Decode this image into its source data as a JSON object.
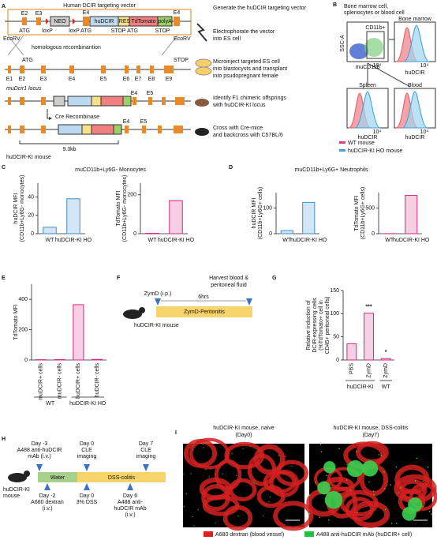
{
  "panel_labels": [
    "A",
    "B",
    "C",
    "D",
    "E",
    "F",
    "G",
    "H",
    "I"
  ],
  "a": {
    "vector_title": "Human DCIR targeting vector",
    "top_exons": [
      "E2",
      "E3",
      "E4",
      "E4"
    ],
    "cassette": [
      "NEO",
      "huDCIR",
      "IRES",
      "TdTomato",
      "polyA"
    ],
    "below_marks": [
      "ATG",
      "loxP",
      "loxP",
      "ATG",
      "STOP",
      "ATG",
      "STOP"
    ],
    "ecorv": [
      "EcoRV",
      "EcoRV"
    ],
    "recombination": "homologous recombinantion",
    "locus_marks": [
      "ATG",
      "STOP"
    ],
    "locus_exons": [
      "E1",
      "E2",
      "E3",
      "E4",
      "E5",
      "E6",
      "E7",
      "E8",
      "E9"
    ],
    "locus_name": "muDcir1 locus",
    "ki_exons": [
      "E4",
      "E5"
    ],
    "cre": "Cre Recombinase",
    "final_exons": [
      "E4",
      "E5"
    ],
    "length": "9.3kb",
    "mouse": "huDCIR-KI mouse",
    "steps": [
      "Generate the huDCIR targeting vector",
      "Electrophorate the vector",
      "into ES cell",
      "Microinject targeted ES cell",
      "into blastocysts and transplant",
      "into psudopregnant female",
      "Identify F1 chimeric offsprings",
      "with huDCIR-KI locus",
      "Cross with Cre-mice",
      "and backcross with C57BL/6"
    ]
  },
  "b": {
    "source": [
      "Bone marrow cell,",
      "splenocytes or blood cell"
    ],
    "gate": "CD11b+",
    "dot_ylabel": "SSC-A",
    "dot_xlabel": "muCD11b",
    "hist_titles": [
      "Bone marrow",
      "Spleen",
      "Blood"
    ],
    "hist_xlabels": [
      "huDCIR",
      "huDCIR",
      "huDCIR"
    ],
    "tick_labels": [
      "10⁴",
      "10⁴",
      "10⁴",
      "10⁴"
    ],
    "legend": [
      "WT mouse",
      "huDCIR-KI HO mouse"
    ]
  },
  "c": {
    "title": "muCD11b+Ly6G- Monocytes"
  },
  "d": {
    "title": "muCD11b+Ly6G+ Neutrophils"
  },
  "f": {
    "injection": "ZymD (i.p.)",
    "duration": "6hrs",
    "harvest": [
      "Harvest blood &",
      "peritoneal fluid"
    ],
    "phase": "ZymD-Peritonitis",
    "mouse": "huDCIR-KI mouse"
  },
  "h": {
    "above": [
      [
        "Day -3",
        "A488 anti-huDCIR",
        "mAb (i.v.)"
      ],
      [
        "Day 0",
        "CLE",
        "imaging"
      ],
      [
        "Day 7",
        "CLE",
        "imaging"
      ]
    ],
    "below": [
      [
        "Day -2",
        "A680 dextran",
        "(i.v.)"
      ],
      [
        "Day 0",
        "3% DSS"
      ],
      [
        "Day 6",
        "A488 anti-",
        "huDCIR mAb",
        "(i.v.)"
      ]
    ],
    "phases": [
      "Water",
      "DSS-colitis"
    ],
    "mouse": [
      "huDCIR-KI",
      "mouse"
    ]
  },
  "i": {
    "titles": [
      [
        "huDCIR-KI mouse, naive",
        "(Day0)"
      ],
      [
        "huDCIR-KI mouse, DSS-colitis",
        "(Day7)"
      ]
    ],
    "scale": [
      "20 μm",
      "20 μm"
    ],
    "legend": [
      "A680 dextran (blood vessel)",
      "A488 anti-huDCIR mAb (huDCIR+ cell)"
    ]
  },
  "chart_data": [
    {
      "type": "bar",
      "ylabel": [
        "huDCIR MFI",
        "(CD11b+Ly6G- monocytes)"
      ],
      "categories": [
        "WT",
        "huDCIR-KI HO"
      ],
      "values": [
        7,
        38
      ],
      "color": "#3a8fd0",
      "ylim": [
        0,
        55
      ],
      "yticks": [
        0,
        20,
        40
      ]
    },
    {
      "type": "bar",
      "ylabel": [
        "TdTomato MFI",
        "(CD11b+Ly6G- monocytes)"
      ],
      "categories": [
        "WT",
        "huDCIR-KI HO"
      ],
      "values": [
        2,
        170
      ],
      "color": "#d8267f",
      "ylim": [
        0,
        260
      ],
      "yticks": [
        0,
        200
      ]
    },
    {
      "type": "bar",
      "ylabel": [
        "huDCIR MFI",
        "(CD11b+Ly6G+ cells)"
      ],
      "categories": [
        "WT",
        "huDCIR-KI HO"
      ],
      "values": [
        12,
        122
      ],
      "color": "#3a8fd0",
      "ylim": [
        0,
        160
      ],
      "yticks": [
        0,
        100
      ]
    },
    {
      "type": "bar",
      "ylabel": [
        "TdTomato MFI",
        "(CD11b+Ly6G+ cells)"
      ],
      "categories": [
        "WT",
        "huDCIR-KI HO"
      ],
      "values": [
        2,
        745
      ],
      "color": "#d8267f",
      "ylim": [
        0,
        800
      ],
      "yticks": [
        0,
        500
      ]
    },
    {
      "type": "bar",
      "ylabel": [
        "TdTomato MFI"
      ],
      "categories": [
        "muDCIR+ cells",
        "muDCIR- cells",
        "huDCIR+ cells",
        "huDCIR- cells"
      ],
      "values": [
        2,
        3,
        365,
        4
      ],
      "color": "#d8267f",
      "ylim": [
        0,
        500
      ],
      "yticks": [
        0,
        200,
        400
      ],
      "groups": [
        {
          "name": "WT",
          "size": 2
        },
        {
          "name": "huDCIR-KI HO",
          "size": 2
        }
      ]
    },
    {
      "type": "bar",
      "ylabel": [
        "Relative induction of",
        "DCIR-expressing cells",
        "(%TdTomato+ cell in",
        "CD45+ peritoneal cells)"
      ],
      "categories": [
        "PBS",
        "ZymD",
        "ZymD"
      ],
      "values": [
        35,
        101,
        3
      ],
      "color": "#d8267f",
      "ylim": [
        0,
        150
      ],
      "yticks": [
        0,
        50,
        100,
        150
      ],
      "groups": [
        {
          "name": "huDCIR-KI",
          "size": 2
        },
        {
          "name": "WT",
          "size": 1
        }
      ],
      "annotations": [
        null,
        "***",
        "*"
      ]
    }
  ]
}
